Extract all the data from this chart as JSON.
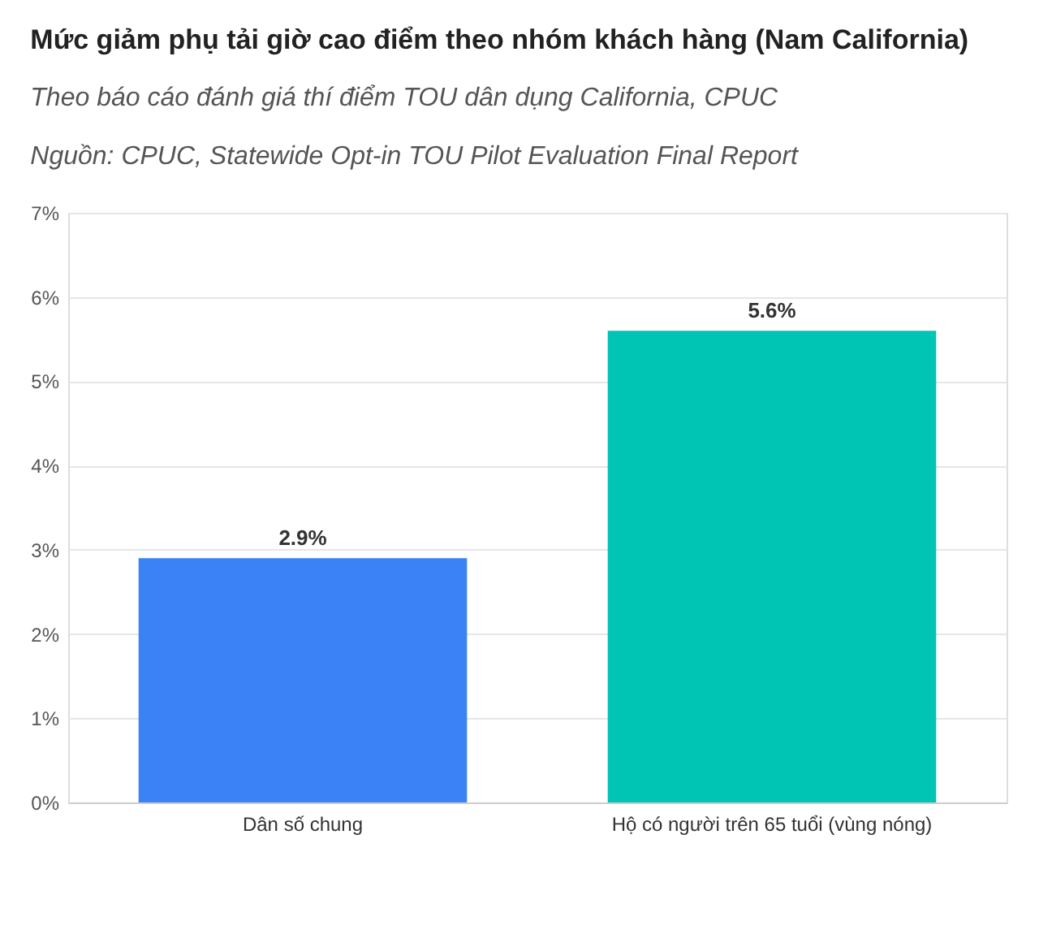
{
  "chart_data": {
    "type": "bar",
    "title": "Mức giảm phụ tải giờ cao điểm theo nhóm khách hàng (Nam California)",
    "subtitle": "Theo báo cáo đánh giá thí điểm TOU dân dụng California, CPUC",
    "annotations": [
      "Nguồn: CPUC, Statewide Opt-in TOU Pilot Evaluation Final Report"
    ],
    "categories": [
      "Dân số chung",
      "Hộ có người trên 65 tuổi (vùng nóng)"
    ],
    "values": [
      2.9,
      5.6
    ],
    "colors": [
      "#3b82f6",
      "#00c4b4"
    ],
    "value_labels": [
      "2.9%",
      "5.6%"
    ],
    "ylim": [
      0,
      7
    ],
    "yticks": [
      {
        "value": 0,
        "label": "0%"
      },
      {
        "value": 1,
        "label": "1%"
      },
      {
        "value": 2,
        "label": "2%"
      },
      {
        "value": 3,
        "label": "3%"
      },
      {
        "value": 4,
        "label": "4%"
      },
      {
        "value": 5,
        "label": "5%"
      },
      {
        "value": 6,
        "label": "6%"
      },
      {
        "value": 7,
        "label": "7%"
      }
    ],
    "grid": "y",
    "legend": false
  }
}
